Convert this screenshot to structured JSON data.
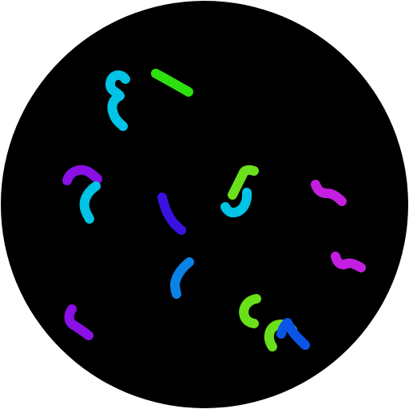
{
  "scene": {
    "background": "#ffffff",
    "field_color": "#000000",
    "description_kind": "circular dark field with scattered colored curved strokes"
  },
  "palette": {
    "cyan": "#00c3e6",
    "green": "#2ee00f",
    "lime": "#6ae01a",
    "violet": "#8a10e6",
    "indigo": "#3a12e0",
    "magenta": "#c41ee0",
    "blue": "#0a82e6",
    "royal": "#0a55e6"
  },
  "worms": [
    {
      "name": "worm-cyan-top-left",
      "color": "cyan"
    },
    {
      "name": "worm-green-top",
      "color": "green"
    },
    {
      "name": "worm-violet-left",
      "color": "violet"
    },
    {
      "name": "worm-cyan-left",
      "color": "cyan"
    },
    {
      "name": "worm-indigo-center",
      "color": "indigo"
    },
    {
      "name": "worm-lime-center",
      "color": "lime"
    },
    {
      "name": "worm-cyan-center",
      "color": "cyan"
    },
    {
      "name": "worm-magenta-right-upper",
      "color": "magenta"
    },
    {
      "name": "worm-magenta-right-lower",
      "color": "magenta"
    },
    {
      "name": "worm-blue-center-lower",
      "color": "blue"
    },
    {
      "name": "worm-violet-bottom-left",
      "color": "violet"
    },
    {
      "name": "worm-lime-bottom-center",
      "color": "lime"
    },
    {
      "name": "worm-lime-bottom-right",
      "color": "lime"
    },
    {
      "name": "worm-royal-bottom-right",
      "color": "royal"
    }
  ]
}
